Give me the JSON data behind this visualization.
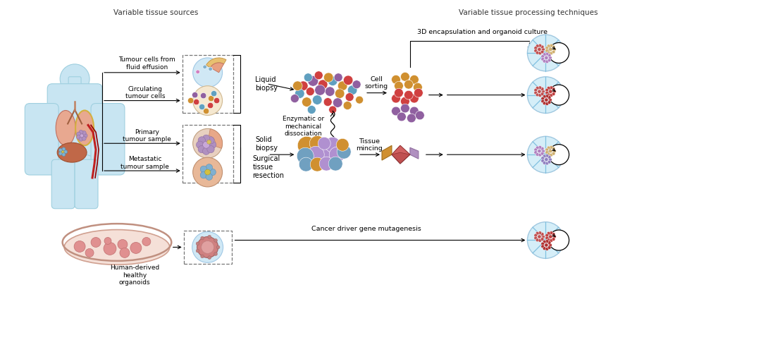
{
  "title_left": "Variable tissue sources",
  "title_right": "Variable tissue processing techniques",
  "bg_color": "#ffffff",
  "labels": {
    "tumour_fluid": "Tumour cells from\nfluid effusion",
    "circulating": "Circulating\ntumour cells",
    "primary": "Primary\ntumour sample",
    "metastatic": "Metastatic\ntumour sample",
    "organoids": "Human-derived\nhealthy\norganoids",
    "liquid_biopsy": "Liquid\nbiopsy",
    "solid_biopsy": "Solid\nbiopsy",
    "surgical": "Surgical\ntissue\nresection",
    "cell_sorting": "Cell\nsorting",
    "enzymatic": "Enzymatic or\nmechanical\ndissociation",
    "tissue_mincing": "Tissue\nmincing",
    "encapsulation": "3D encapsulation and organoid culture",
    "cancer_driver": "Cancer driver gene mutagenesis"
  },
  "colors": {
    "body_fill": "#c8e5f2",
    "body_edge": "#9ecfdf",
    "lung_fill": "#e8a890",
    "liver_fill": "#c06848",
    "cell_red": "#d04040",
    "cell_purple": "#9060a0",
    "cell_yellow": "#d09030",
    "cell_blue": "#60a0c0",
    "scaffold_blue": "#80c0e0",
    "scaffold_bg": "#d5eef8",
    "tissue_red": "#c05050",
    "tissue_yellow": "#d09030",
    "tissue_blue": "#70a0c0",
    "tissue_purple": "#b090d0"
  }
}
